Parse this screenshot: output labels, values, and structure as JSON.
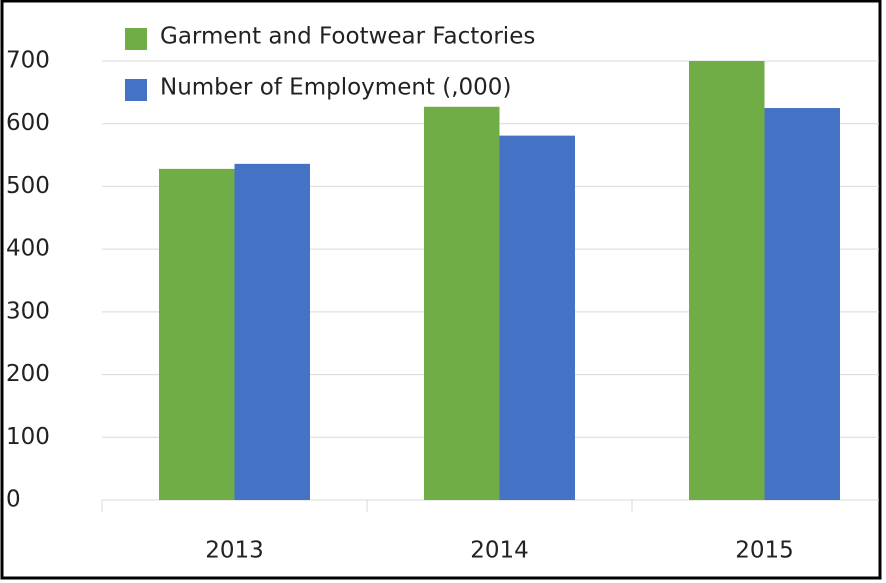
{
  "chart_data": {
    "type": "bar",
    "categories": [
      "2013",
      "2014",
      "2015"
    ],
    "series": [
      {
        "name": "Garment and Footwear Factories",
        "color": "#70ad47",
        "values": [
          528,
          627,
          700
        ]
      },
      {
        "name": "Number of Employment (,000)",
        "color": "#4472c4",
        "values": [
          536,
          581,
          625
        ]
      }
    ],
    "ylim": [
      0,
      700
    ],
    "yticks": [
      0,
      100,
      200,
      300,
      400,
      500,
      600,
      700
    ],
    "grid": true,
    "legend": "top-left"
  }
}
